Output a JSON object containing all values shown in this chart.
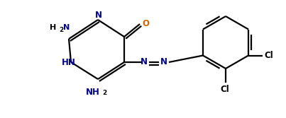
{
  "bg_color": "#ffffff",
  "bond_color": "#000000",
  "atom_color_N": "#00008b",
  "atom_color_O": "#cc6600",
  "atom_color_Cl": "#000000",
  "atom_color_C": "#000000",
  "line_width": 1.6,
  "figsize": [
    4.03,
    1.67
  ],
  "dpi": 100,
  "xlim": [
    0,
    403
  ],
  "ylim": [
    0,
    167
  ]
}
